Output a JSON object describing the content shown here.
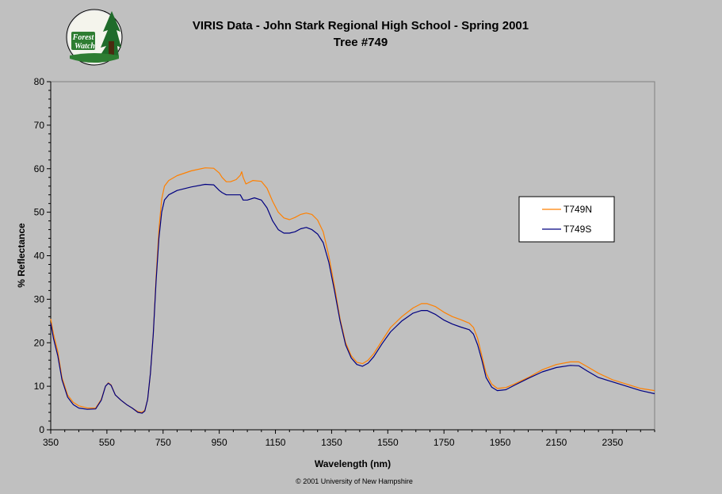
{
  "logo": {
    "line1": "Forest",
    "line2": "Watch"
  },
  "footer": "© 2001 University of New Hampshire",
  "colors": {
    "background": "#c0c0c0",
    "plot_area": "#c0c0c0",
    "north": "#ff8000",
    "south": "#000080"
  },
  "chart_data": {
    "type": "line",
    "title": "VIRIS Data - John Stark Regional High School - Spring 2001",
    "subtitle": "Tree #749",
    "xlabel": "Wavelength (nm)",
    "ylabel": "% Reflectance",
    "xlim": [
      350,
      2500
    ],
    "ylim": [
      0,
      80
    ],
    "xticks": [
      350,
      550,
      750,
      950,
      1150,
      1350,
      1550,
      1750,
      1950,
      2150,
      2350
    ],
    "yticks": [
      0,
      10,
      20,
      30,
      40,
      50,
      60,
      70,
      80
    ],
    "grid": false,
    "legend_position": "right",
    "series": [
      {
        "name": "T749N",
        "color": "#ff8000",
        "points": [
          [
            350,
            25.5
          ],
          [
            360,
            22
          ],
          [
            375,
            18
          ],
          [
            390,
            12
          ],
          [
            410,
            8
          ],
          [
            430,
            6.3
          ],
          [
            450,
            5.5
          ],
          [
            480,
            5
          ],
          [
            510,
            5
          ],
          [
            530,
            7
          ],
          [
            545,
            10
          ],
          [
            555,
            10.8
          ],
          [
            565,
            10.3
          ],
          [
            580,
            8
          ],
          [
            600,
            6.8
          ],
          [
            620,
            5.8
          ],
          [
            640,
            5
          ],
          [
            660,
            4.2
          ],
          [
            675,
            4
          ],
          [
            685,
            4.5
          ],
          [
            695,
            7
          ],
          [
            705,
            13
          ],
          [
            715,
            22
          ],
          [
            725,
            35
          ],
          [
            735,
            46
          ],
          [
            745,
            53
          ],
          [
            755,
            56
          ],
          [
            770,
            57.3
          ],
          [
            800,
            58.4
          ],
          [
            850,
            59.5
          ],
          [
            900,
            60.2
          ],
          [
            930,
            60.1
          ],
          [
            950,
            59
          ],
          [
            960,
            58
          ],
          [
            975,
            57
          ],
          [
            990,
            57
          ],
          [
            1010,
            57.5
          ],
          [
            1025,
            58.5
          ],
          [
            1030,
            59.3
          ],
          [
            1035,
            58
          ],
          [
            1045,
            56.5
          ],
          [
            1070,
            57.3
          ],
          [
            1100,
            57.1
          ],
          [
            1120,
            55.5
          ],
          [
            1140,
            52.5
          ],
          [
            1160,
            50
          ],
          [
            1180,
            48.7
          ],
          [
            1200,
            48.3
          ],
          [
            1220,
            48.8
          ],
          [
            1240,
            49.5
          ],
          [
            1260,
            49.8
          ],
          [
            1280,
            49.5
          ],
          [
            1300,
            48.2
          ],
          [
            1320,
            45.5
          ],
          [
            1340,
            40
          ],
          [
            1360,
            33
          ],
          [
            1380,
            25.5
          ],
          [
            1400,
            20
          ],
          [
            1420,
            17
          ],
          [
            1440,
            15.5
          ],
          [
            1460,
            15.2
          ],
          [
            1480,
            16
          ],
          [
            1500,
            17.5
          ],
          [
            1530,
            20.5
          ],
          [
            1560,
            23.5
          ],
          [
            1600,
            26
          ],
          [
            1640,
            28
          ],
          [
            1670,
            29
          ],
          [
            1690,
            29
          ],
          [
            1720,
            28.3
          ],
          [
            1750,
            27
          ],
          [
            1780,
            26
          ],
          [
            1810,
            25.3
          ],
          [
            1840,
            24.5
          ],
          [
            1855,
            23.5
          ],
          [
            1870,
            21
          ],
          [
            1885,
            17
          ],
          [
            1900,
            13
          ],
          [
            1920,
            10.5
          ],
          [
            1940,
            9.5
          ],
          [
            1970,
            9.7
          ],
          [
            2000,
            10.5
          ],
          [
            2050,
            12
          ],
          [
            2100,
            13.8
          ],
          [
            2150,
            15
          ],
          [
            2200,
            15.6
          ],
          [
            2230,
            15.6
          ],
          [
            2260,
            14.5
          ],
          [
            2300,
            13
          ],
          [
            2350,
            11.5
          ],
          [
            2400,
            10.5
          ],
          [
            2450,
            9.5
          ],
          [
            2500,
            9
          ]
        ]
      },
      {
        "name": "T749S",
        "color": "#000080",
        "points": [
          [
            350,
            24.5
          ],
          [
            360,
            21
          ],
          [
            375,
            17
          ],
          [
            390,
            11.5
          ],
          [
            410,
            7.5
          ],
          [
            430,
            5.8
          ],
          [
            450,
            5
          ],
          [
            480,
            4.7
          ],
          [
            510,
            4.8
          ],
          [
            530,
            6.8
          ],
          [
            545,
            10
          ],
          [
            555,
            10.7
          ],
          [
            565,
            10.2
          ],
          [
            580,
            8
          ],
          [
            600,
            6.8
          ],
          [
            620,
            5.8
          ],
          [
            640,
            5
          ],
          [
            660,
            4
          ],
          [
            675,
            3.8
          ],
          [
            685,
            4.3
          ],
          [
            695,
            7
          ],
          [
            705,
            13
          ],
          [
            715,
            22
          ],
          [
            725,
            34
          ],
          [
            735,
            44
          ],
          [
            745,
            50
          ],
          [
            755,
            52.8
          ],
          [
            770,
            54
          ],
          [
            800,
            55
          ],
          [
            850,
            55.8
          ],
          [
            900,
            56.4
          ],
          [
            930,
            56.3
          ],
          [
            950,
            55
          ],
          [
            960,
            54.5
          ],
          [
            975,
            54
          ],
          [
            1000,
            54
          ],
          [
            1025,
            54
          ],
          [
            1035,
            52.8
          ],
          [
            1050,
            52.8
          ],
          [
            1075,
            53.3
          ],
          [
            1100,
            52.8
          ],
          [
            1120,
            51
          ],
          [
            1140,
            48
          ],
          [
            1160,
            46
          ],
          [
            1180,
            45.2
          ],
          [
            1200,
            45.2
          ],
          [
            1220,
            45.5
          ],
          [
            1240,
            46.2
          ],
          [
            1260,
            46.5
          ],
          [
            1280,
            46
          ],
          [
            1300,
            45
          ],
          [
            1320,
            43
          ],
          [
            1340,
            38.5
          ],
          [
            1360,
            32
          ],
          [
            1380,
            25
          ],
          [
            1400,
            19.5
          ],
          [
            1420,
            16.5
          ],
          [
            1440,
            15
          ],
          [
            1460,
            14.6
          ],
          [
            1480,
            15.3
          ],
          [
            1500,
            16.8
          ],
          [
            1530,
            19.8
          ],
          [
            1560,
            22.5
          ],
          [
            1600,
            25
          ],
          [
            1640,
            26.8
          ],
          [
            1670,
            27.4
          ],
          [
            1690,
            27.4
          ],
          [
            1720,
            26.5
          ],
          [
            1750,
            25.2
          ],
          [
            1780,
            24.3
          ],
          [
            1810,
            23.6
          ],
          [
            1840,
            23
          ],
          [
            1855,
            22
          ],
          [
            1870,
            19.5
          ],
          [
            1885,
            16
          ],
          [
            1900,
            12
          ],
          [
            1920,
            9.8
          ],
          [
            1940,
            9
          ],
          [
            1970,
            9.2
          ],
          [
            2000,
            10.2
          ],
          [
            2050,
            11.8
          ],
          [
            2100,
            13.3
          ],
          [
            2150,
            14.3
          ],
          [
            2200,
            14.8
          ],
          [
            2230,
            14.7
          ],
          [
            2260,
            13.5
          ],
          [
            2300,
            12
          ],
          [
            2350,
            11
          ],
          [
            2400,
            10
          ],
          [
            2450,
            9
          ],
          [
            2500,
            8.3
          ]
        ]
      }
    ]
  }
}
